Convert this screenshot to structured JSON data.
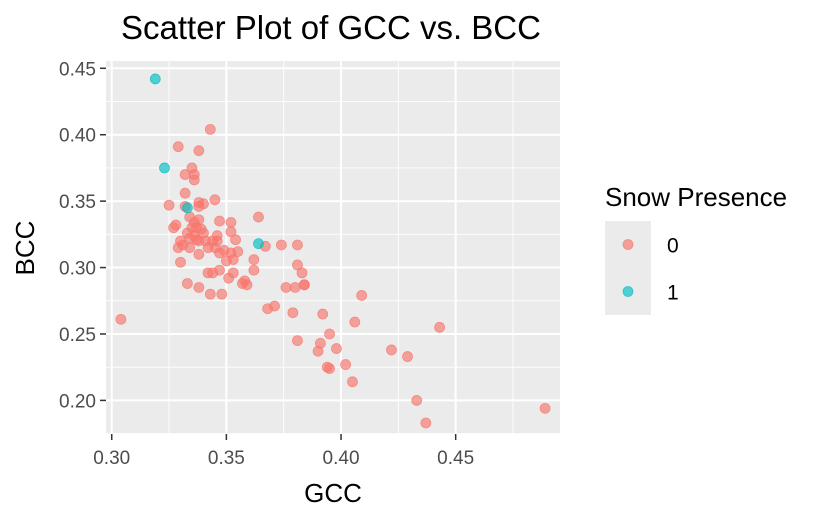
{
  "chart_data": {
    "type": "scatter",
    "title": "Scatter Plot of GCC vs. BCC",
    "xlabel": "GCC",
    "ylabel": "BCC",
    "xlim": [
      0.2975,
      0.4955
    ],
    "ylim": [
      0.1747,
      0.4555
    ],
    "x_ticks": [
      {
        "value": 0.3,
        "label": "0.30"
      },
      {
        "value": 0.35,
        "label": "0.35"
      },
      {
        "value": 0.4,
        "label": "0.40"
      },
      {
        "value": 0.45,
        "label": "0.45"
      }
    ],
    "y_ticks": [
      {
        "value": 0.2,
        "label": "0.20"
      },
      {
        "value": 0.25,
        "label": "0.25"
      },
      {
        "value": 0.3,
        "label": "0.30"
      },
      {
        "value": 0.35,
        "label": "0.35"
      },
      {
        "value": 0.4,
        "label": "0.40"
      },
      {
        "value": 0.45,
        "label": "0.45"
      }
    ],
    "grid": true,
    "legend": {
      "title": "Snow Presence",
      "position": "right",
      "entries": [
        {
          "label": "0",
          "color": "#F8766D"
        },
        {
          "label": "1",
          "color": "#00BFC4"
        }
      ]
    },
    "series": [
      {
        "name": "0",
        "color": "#F8766D",
        "points": [
          [
            0.304,
            0.261
          ],
          [
            0.325,
            0.347
          ],
          [
            0.327,
            0.33
          ],
          [
            0.328,
            0.332
          ],
          [
            0.329,
            0.391
          ],
          [
            0.329,
            0.315
          ],
          [
            0.33,
            0.32
          ],
          [
            0.33,
            0.304
          ],
          [
            0.331,
            0.317
          ],
          [
            0.332,
            0.37
          ],
          [
            0.332,
            0.356
          ],
          [
            0.332,
            0.346
          ],
          [
            0.333,
            0.326
          ],
          [
            0.333,
            0.288
          ],
          [
            0.334,
            0.338
          ],
          [
            0.334,
            0.322
          ],
          [
            0.334,
            0.315
          ],
          [
            0.335,
            0.375
          ],
          [
            0.335,
            0.33
          ],
          [
            0.336,
            0.37
          ],
          [
            0.336,
            0.366
          ],
          [
            0.336,
            0.334
          ],
          [
            0.336,
            0.324
          ],
          [
            0.337,
            0.321
          ],
          [
            0.337,
            0.33
          ],
          [
            0.338,
            0.388
          ],
          [
            0.338,
            0.349
          ],
          [
            0.338,
            0.346
          ],
          [
            0.338,
            0.336
          ],
          [
            0.338,
            0.32
          ],
          [
            0.338,
            0.31
          ],
          [
            0.338,
            0.285
          ],
          [
            0.339,
            0.329
          ],
          [
            0.34,
            0.348
          ],
          [
            0.34,
            0.326
          ],
          [
            0.341,
            0.32
          ],
          [
            0.342,
            0.315
          ],
          [
            0.342,
            0.296
          ],
          [
            0.343,
            0.404
          ],
          [
            0.343,
            0.28
          ],
          [
            0.344,
            0.32
          ],
          [
            0.344,
            0.296
          ],
          [
            0.345,
            0.351
          ],
          [
            0.345,
            0.315
          ],
          [
            0.346,
            0.324
          ],
          [
            0.346,
            0.32
          ],
          [
            0.347,
            0.335
          ],
          [
            0.347,
            0.311
          ],
          [
            0.347,
            0.298
          ],
          [
            0.348,
            0.28
          ],
          [
            0.349,
            0.313
          ],
          [
            0.35,
            0.305
          ],
          [
            0.351,
            0.292
          ],
          [
            0.352,
            0.334
          ],
          [
            0.352,
            0.327
          ],
          [
            0.352,
            0.311
          ],
          [
            0.353,
            0.306
          ],
          [
            0.353,
            0.296
          ],
          [
            0.354,
            0.321
          ],
          [
            0.355,
            0.312
          ],
          [
            0.357,
            0.288
          ],
          [
            0.358,
            0.29
          ],
          [
            0.359,
            0.287
          ],
          [
            0.362,
            0.306
          ],
          [
            0.362,
            0.298
          ],
          [
            0.364,
            0.338
          ],
          [
            0.367,
            0.316
          ],
          [
            0.368,
            0.269
          ],
          [
            0.371,
            0.271
          ],
          [
            0.374,
            0.317
          ],
          [
            0.376,
            0.285
          ],
          [
            0.379,
            0.266
          ],
          [
            0.38,
            0.285
          ],
          [
            0.381,
            0.317
          ],
          [
            0.381,
            0.302
          ],
          [
            0.381,
            0.245
          ],
          [
            0.383,
            0.296
          ],
          [
            0.384,
            0.287
          ],
          [
            0.384,
            0.287
          ],
          [
            0.39,
            0.237
          ],
          [
            0.391,
            0.243
          ],
          [
            0.392,
            0.265
          ],
          [
            0.394,
            0.225
          ],
          [
            0.395,
            0.25
          ],
          [
            0.395,
            0.224
          ],
          [
            0.398,
            0.239
          ],
          [
            0.402,
            0.227
          ],
          [
            0.405,
            0.214
          ],
          [
            0.406,
            0.259
          ],
          [
            0.409,
            0.279
          ],
          [
            0.422,
            0.238
          ],
          [
            0.429,
            0.233
          ],
          [
            0.433,
            0.2
          ],
          [
            0.437,
            0.183
          ],
          [
            0.443,
            0.255
          ],
          [
            0.489,
            0.194
          ]
        ]
      },
      {
        "name": "1",
        "color": "#00BFC4",
        "points": [
          [
            0.319,
            0.442
          ],
          [
            0.323,
            0.375
          ],
          [
            0.333,
            0.345
          ],
          [
            0.364,
            0.318
          ]
        ]
      }
    ]
  }
}
